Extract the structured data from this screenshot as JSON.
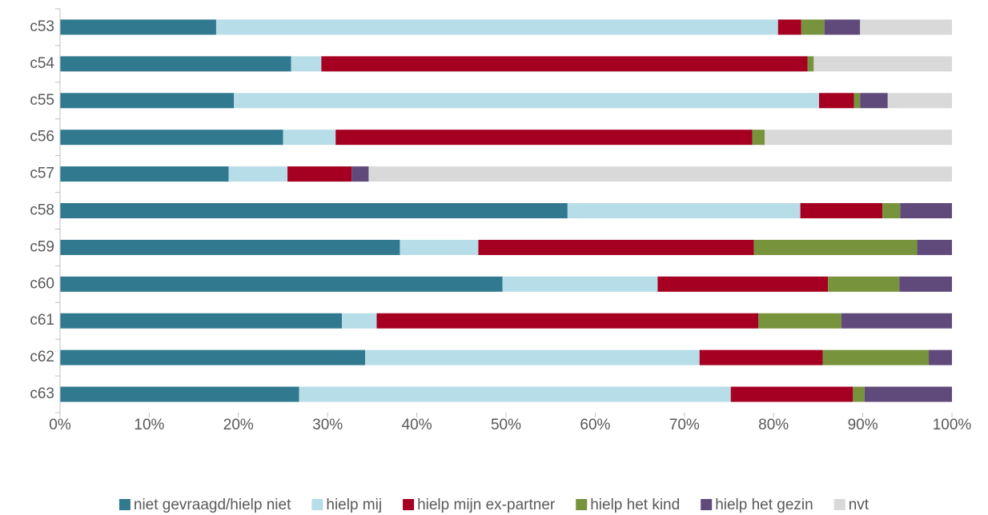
{
  "chart_data": {
    "type": "stacked-barh",
    "categories": [
      "c53",
      "c54",
      "c55",
      "c56",
      "c57",
      "c58",
      "c59",
      "c60",
      "c61",
      "c62",
      "c63"
    ],
    "series": [
      {
        "name": "niet gevraagd/hielp niet",
        "color": "#31798f",
        "values": [
          17.5,
          25.9,
          19.5,
          25.0,
          18.9,
          56.9,
          38.1,
          49.6,
          31.6,
          34.2,
          26.8
        ]
      },
      {
        "name": "hielp mij",
        "color": "#b7dde8",
        "values": [
          63.0,
          3.4,
          65.6,
          5.9,
          6.6,
          26.1,
          8.8,
          17.4,
          3.9,
          37.5,
          48.4
        ]
      },
      {
        "name": "hielp mijn ex-partner",
        "color": "#a50021",
        "values": [
          2.6,
          54.5,
          3.9,
          46.7,
          7.2,
          9.2,
          30.9,
          19.1,
          42.8,
          13.8,
          13.7
        ]
      },
      {
        "name": "hielp het kind",
        "color": "#77933c",
        "values": [
          2.6,
          0.7,
          0.7,
          1.4,
          0,
          2.0,
          18.3,
          8.0,
          9.3,
          11.9,
          1.3
        ]
      },
      {
        "name": "hielp het gezin",
        "color": "#604a7b",
        "values": [
          4.0,
          0,
          3.1,
          0,
          1.9,
          5.8,
          3.9,
          5.9,
          12.4,
          2.6,
          9.8
        ]
      },
      {
        "name": "nvt",
        "color": "#d9d9d9",
        "values": [
          10.3,
          15.5,
          7.2,
          21.0,
          65.4,
          0,
          0,
          0,
          0,
          0,
          0
        ]
      }
    ],
    "xlim": [
      0,
      100
    ],
    "xticks": [
      {
        "value": 0,
        "label": "0%"
      },
      {
        "value": 10,
        "label": "10%"
      },
      {
        "value": 20,
        "label": "20%"
      },
      {
        "value": 30,
        "label": "30%"
      },
      {
        "value": 40,
        "label": "40%"
      },
      {
        "value": 50,
        "label": "50%"
      },
      {
        "value": 60,
        "label": "60%"
      },
      {
        "value": 70,
        "label": "70%"
      },
      {
        "value": 80,
        "label": "80%"
      },
      {
        "value": 90,
        "label": "90%"
      },
      {
        "value": 100,
        "label": "100%"
      }
    ],
    "legend": "bottom",
    "grid": false
  }
}
